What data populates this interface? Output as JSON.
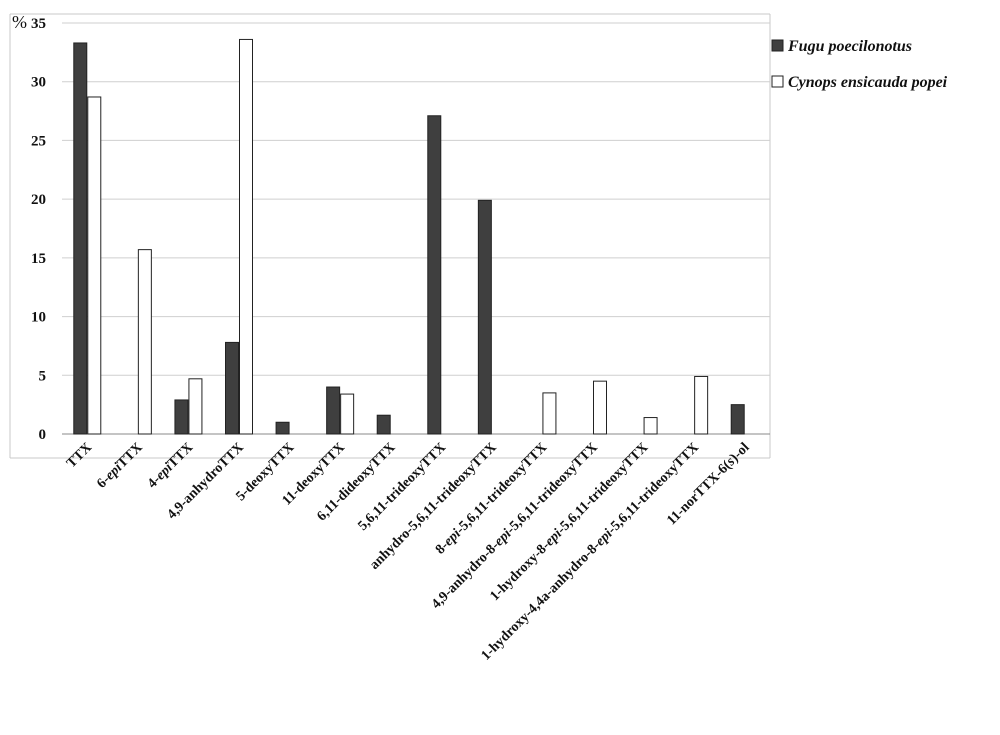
{
  "chart_data": {
    "type": "bar",
    "ylabel": "%",
    "ylim": [
      0,
      35
    ],
    "yticks": [
      0,
      5,
      10,
      15,
      20,
      25,
      30,
      35
    ],
    "grid": true,
    "legend_position": "top-right",
    "categories": [
      [
        {
          "t": "TTX"
        }
      ],
      [
        {
          "t": "6-"
        },
        {
          "t": "epi",
          "i": true
        },
        {
          "t": "TTX"
        }
      ],
      [
        {
          "t": "4-"
        },
        {
          "t": "epi",
          "i": true
        },
        {
          "t": "TTX"
        }
      ],
      [
        {
          "t": "4,9-anhydroTTX"
        }
      ],
      [
        {
          "t": "5-deoxyTTX"
        }
      ],
      [
        {
          "t": "11-deoxyTTX"
        }
      ],
      [
        {
          "t": "6,11-dideoxyTTX"
        }
      ],
      [
        {
          "t": "5,6,11-trideoxyTTX"
        }
      ],
      [
        {
          "t": "anhydro-5,6,11-trideoxyTTX"
        }
      ],
      [
        {
          "t": "8-"
        },
        {
          "t": "epi",
          "i": true
        },
        {
          "t": "-5,6,11-trideoxyTTX"
        }
      ],
      [
        {
          "t": "4,9-anhydro-8-"
        },
        {
          "t": "epi",
          "i": true
        },
        {
          "t": "-5,6,11-trideoxyTTX"
        }
      ],
      [
        {
          "t": "1-hydroxy-8-"
        },
        {
          "t": "epi",
          "i": true
        },
        {
          "t": "-5,6,11-trideoxyTTX"
        }
      ],
      [
        {
          "t": "1-hydroxy-4,4a-anhydro-8-"
        },
        {
          "t": "epi",
          "i": true
        },
        {
          "t": "-5,6,11-trideoxyTTX"
        }
      ],
      [
        {
          "t": "11-norTTX-6("
        },
        {
          "t": "s",
          "i": true
        },
        {
          "t": ")-ol"
        }
      ]
    ],
    "series": [
      {
        "name": "Fugu poecilonotus",
        "color": "#3f3f3f",
        "values": [
          33.3,
          0,
          2.9,
          7.8,
          1.0,
          4.0,
          1.6,
          27.1,
          19.9,
          0,
          0,
          0,
          0,
          2.5
        ]
      },
      {
        "name": "Cynops ensicauda popei",
        "color": "#ffffff",
        "values": [
          28.7,
          15.7,
          4.7,
          33.6,
          0,
          3.4,
          0,
          0,
          0,
          3.5,
          4.5,
          1.4,
          4.9,
          0
        ]
      }
    ]
  }
}
